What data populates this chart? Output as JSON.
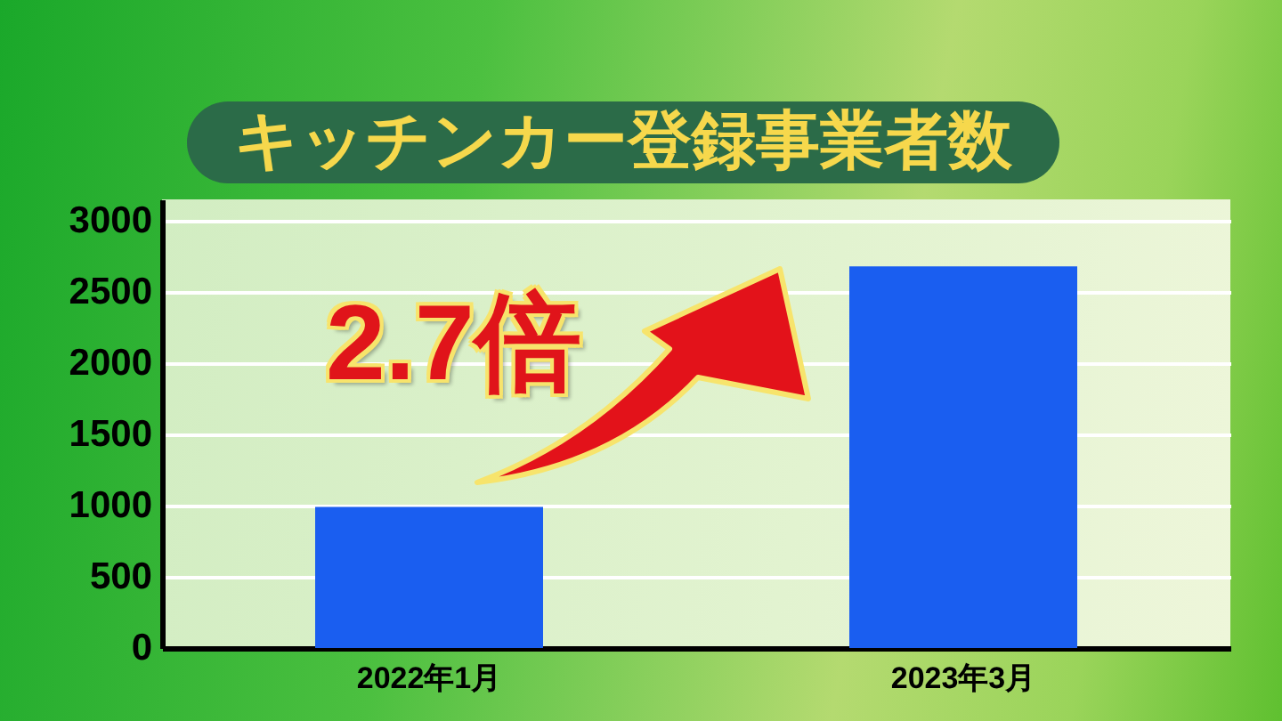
{
  "chart_data": {
    "type": "bar",
    "title": "キッチンカー登録事業者数",
    "annotations": [
      "2.7倍"
    ],
    "categories": [
      "2022年1月",
      "2023年3月"
    ],
    "values": [
      990,
      2680
    ],
    "color": "#1a5ef0",
    "ylim": [
      0,
      3150
    ],
    "yticks": [
      0,
      500,
      1000,
      1500,
      2000,
      2500,
      3000
    ],
    "grid": "y"
  }
}
